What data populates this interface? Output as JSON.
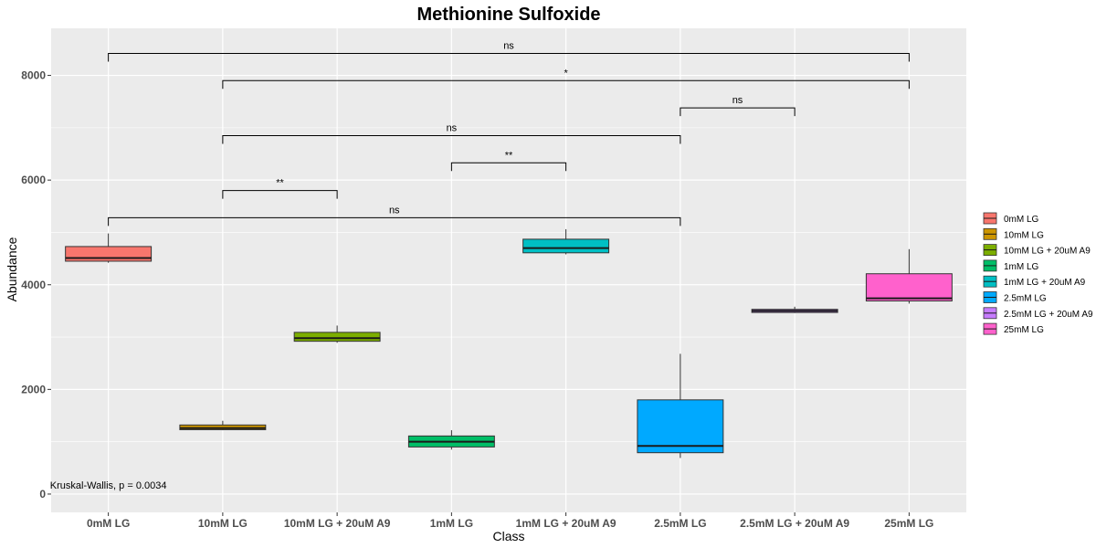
{
  "chart_data": {
    "type": "box",
    "title": "Methionine Sulfoxide",
    "xlabel": "Class",
    "ylabel": "Abundance",
    "ylim": [
      -350,
      8900
    ],
    "yticks": [
      0,
      2000,
      4000,
      6000,
      8000
    ],
    "grid": true,
    "legend_position": "right",
    "categories": [
      "0mM LG",
      "10mM LG",
      "10mM LG + 20uM A9",
      "1mM LG",
      "1mM LG + 20uM A9",
      "2.5mM LG",
      "2.5mM LG + 20uM A9",
      "25mM LG"
    ],
    "series": [
      {
        "name": "0mM LG",
        "color": "#F8766D",
        "min": 4420,
        "q1": 4450,
        "median": 4510,
        "q3": 4730,
        "max": 4980
      },
      {
        "name": "10mM LG",
        "color": "#CD9600",
        "min": 1220,
        "q1": 1230,
        "median": 1260,
        "q3": 1320,
        "max": 1400
      },
      {
        "name": "10mM LG + 20uM A9",
        "color": "#7CAE00",
        "min": 2890,
        "q1": 2920,
        "median": 2980,
        "q3": 3090,
        "max": 3220
      },
      {
        "name": "1mM LG",
        "color": "#00BE67",
        "min": 850,
        "q1": 900,
        "median": 1000,
        "q3": 1110,
        "max": 1220
      },
      {
        "name": "1mM LG + 20uM A9",
        "color": "#00BFC4",
        "min": 4580,
        "q1": 4610,
        "median": 4700,
        "q3": 4870,
        "max": 5060
      },
      {
        "name": "2.5mM LG",
        "color": "#00A9FF",
        "min": 690,
        "q1": 790,
        "median": 920,
        "q3": 1800,
        "max": 2680
      },
      {
        "name": "2.5mM LG + 20uM A9",
        "color": "#C77CFF",
        "min": 3460,
        "q1": 3470,
        "median": 3500,
        "q3": 3530,
        "max": 3580
      },
      {
        "name": "25mM LG",
        "color": "#FF61CC",
        "min": 3640,
        "q1": 3690,
        "median": 3740,
        "q3": 4210,
        "max": 4680
      }
    ],
    "comparisons": [
      {
        "from": 0,
        "to": 7,
        "y": 8420,
        "label": "ns"
      },
      {
        "from": 1,
        "to": 7,
        "y": 7900,
        "label": "*"
      },
      {
        "from": 5,
        "to": 6,
        "y": 7380,
        "label": "ns"
      },
      {
        "from": 1,
        "to": 5,
        "y": 6850,
        "label": "ns"
      },
      {
        "from": 3,
        "to": 4,
        "y": 6330,
        "label": "**"
      },
      {
        "from": 1,
        "to": 2,
        "y": 5800,
        "label": "**"
      },
      {
        "from": 0,
        "to": 5,
        "y": 5280,
        "label": "ns"
      }
    ],
    "annotation": "Kruskal-Wallis, p = 0.0034",
    "annotation_pos": {
      "x": 0,
      "y": 100
    }
  }
}
